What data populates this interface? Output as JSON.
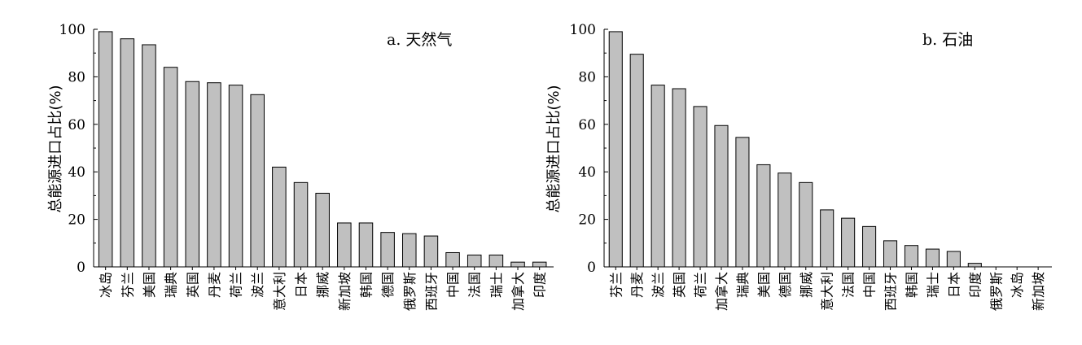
{
  "colors": {
    "bar_fill": "#c0c0c0",
    "axis": "#000000"
  },
  "chart_data": [
    {
      "type": "bar",
      "title": "a. 天然气",
      "ylabel": "总能源进口占比(%)",
      "xlabel": "",
      "ylim": [
        0,
        100
      ],
      "yticks": [
        "0",
        "20",
        "40",
        "60",
        "80",
        "100"
      ],
      "categories": [
        "冰岛",
        "芬兰",
        "美国",
        "瑞典",
        "英国",
        "丹麦",
        "荷兰",
        "波兰",
        "意大利",
        "日本",
        "挪威",
        "新加坡",
        "韩国",
        "德国",
        "俄罗斯",
        "西班牙",
        "中国",
        "法国",
        "瑞士",
        "加拿大",
        "印度"
      ],
      "values": [
        99,
        96,
        93.5,
        84,
        78,
        77.5,
        76.5,
        72.5,
        42,
        35.5,
        31,
        18.5,
        18.5,
        14.5,
        14,
        13,
        6,
        5,
        5,
        2,
        2
      ]
    },
    {
      "type": "bar",
      "title": "b. 石油",
      "ylabel": "总能源进口占比(%)",
      "xlabel": "",
      "ylim": [
        0,
        100
      ],
      "yticks": [
        "0",
        "20",
        "40",
        "60",
        "80",
        "100"
      ],
      "categories": [
        "芬兰",
        "丹麦",
        "波兰",
        "英国",
        "荷兰",
        "加拿大",
        "瑞典",
        "美国",
        "德国",
        "挪威",
        "意大利",
        "法国",
        "中国",
        "西班牙",
        "韩国",
        "瑞士",
        "日本",
        "印度",
        "俄罗斯",
        "冰岛",
        "新加坡"
      ],
      "values": [
        99,
        89.5,
        76.5,
        75,
        67.5,
        59.5,
        54.5,
        43,
        39.5,
        35.5,
        24,
        20.5,
        17,
        11,
        9,
        7.5,
        6.5,
        1.5,
        0,
        0,
        0
      ]
    }
  ]
}
